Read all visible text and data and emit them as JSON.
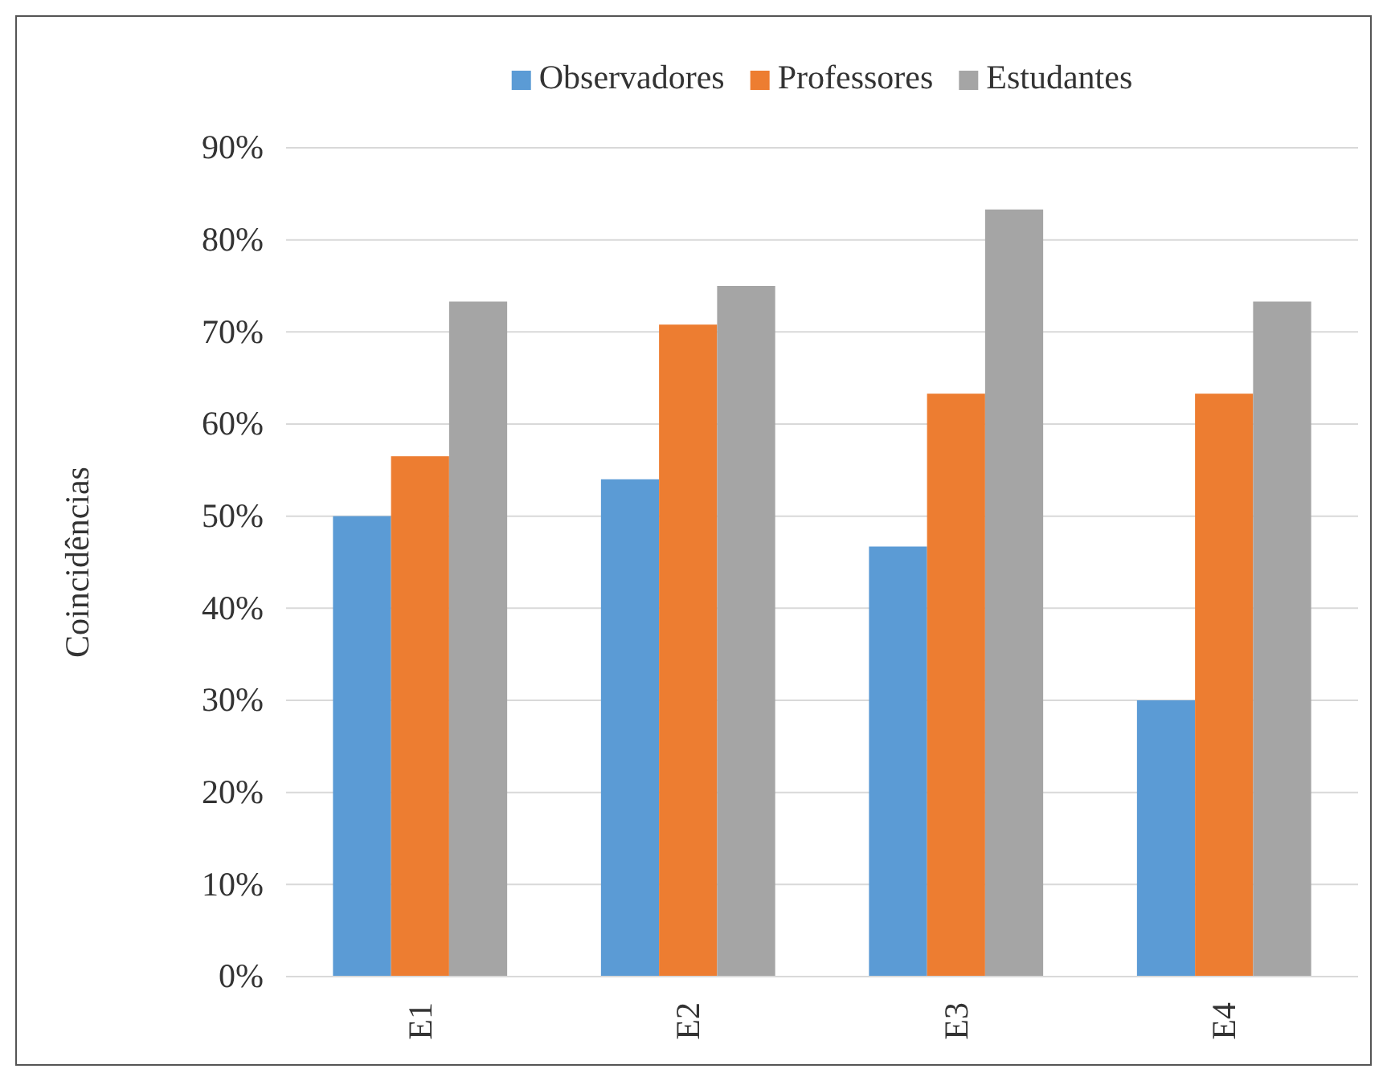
{
  "chart_data": {
    "type": "bar",
    "ylabel": "Coincidências",
    "categories": [
      "E1",
      "E2",
      "E3",
      "E4"
    ],
    "series": [
      {
        "name": "Observadores",
        "color": "#5b9bd5",
        "values": [
          50,
          54,
          46.7,
          30
        ]
      },
      {
        "name": "Professores",
        "color": "#ed7d31",
        "values": [
          56.5,
          70.8,
          63.3,
          63.3
        ]
      },
      {
        "name": "Estudantes",
        "color": "#a5a5a5",
        "values": [
          73.3,
          75,
          83.3,
          73.3
        ]
      }
    ],
    "ylim": [
      0,
      90
    ],
    "yticks": [
      {
        "value": 0,
        "label": "0%"
      },
      {
        "value": 10,
        "label": "10%"
      },
      {
        "value": 20,
        "label": "20%"
      },
      {
        "value": 30,
        "label": "30%"
      },
      {
        "value": 40,
        "label": "40%"
      },
      {
        "value": 50,
        "label": "50%"
      },
      {
        "value": 60,
        "label": "60%"
      },
      {
        "value": 70,
        "label": "70%"
      },
      {
        "value": 80,
        "label": "80%"
      },
      {
        "value": 90,
        "label": "90%"
      }
    ],
    "grid": "y",
    "legend": "top"
  }
}
